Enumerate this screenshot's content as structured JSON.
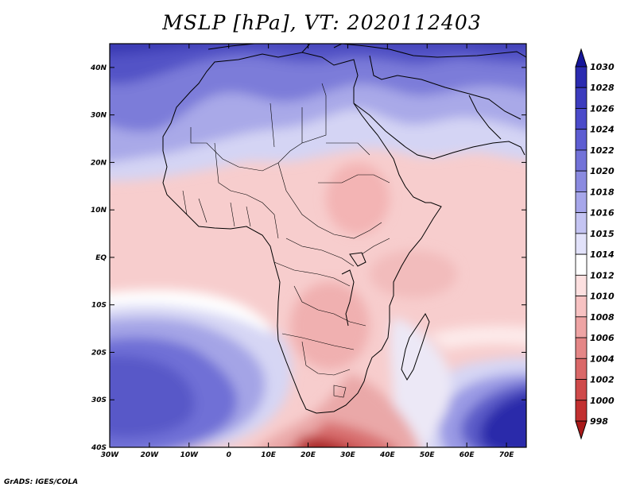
{
  "title": "MSLP [hPa], VT: 2020112403",
  "credit": "GrADS: IGES/COLA",
  "map": {
    "variable": "MSLP",
    "units": "hPa",
    "lat_range": [
      -40,
      45
    ],
    "lon_range": [
      -30,
      75
    ],
    "lat_labels": [
      {
        "lat": 40,
        "text": "40N"
      },
      {
        "lat": 30,
        "text": "30N"
      },
      {
        "lat": 20,
        "text": "20N"
      },
      {
        "lat": 10,
        "text": "10N"
      },
      {
        "lat": 0,
        "text": "EQ"
      },
      {
        "lat": -10,
        "text": "10S"
      },
      {
        "lat": -20,
        "text": "20S"
      },
      {
        "lat": -30,
        "text": "30S"
      },
      {
        "lat": -40,
        "text": "40S"
      }
    ],
    "lon_labels": [
      {
        "lon": -30,
        "text": "30W"
      },
      {
        "lon": -20,
        "text": "20W"
      },
      {
        "lon": -10,
        "text": "10W"
      },
      {
        "lon": 0,
        "text": "0"
      },
      {
        "lon": 10,
        "text": "10E"
      },
      {
        "lon": 20,
        "text": "20E"
      },
      {
        "lon": 30,
        "text": "30E"
      },
      {
        "lon": 40,
        "text": "40E"
      },
      {
        "lon": 50,
        "text": "50E"
      },
      {
        "lon": 60,
        "text": "60E"
      },
      {
        "lon": 70,
        "text": "70E"
      }
    ]
  },
  "colorbar": {
    "labels": [
      "1030",
      "1028",
      "1026",
      "1024",
      "1022",
      "1020",
      "1018",
      "1016",
      "1015",
      "1014",
      "1012",
      "1010",
      "1008",
      "1006",
      "1004",
      "1002",
      "1000",
      "998"
    ],
    "colors": [
      "#16169a",
      "#2b2bb0",
      "#3c3cbe",
      "#4b4bca",
      "#5d5dd2",
      "#7272d8",
      "#8a8ae0",
      "#a6a6ea",
      "#c4c4f2",
      "#e2e2fa",
      "#ffffff",
      "#fde0e0",
      "#f7c2c2",
      "#eea4a4",
      "#e48686",
      "#da6868",
      "#cf4a4a",
      "#c23030",
      "#aa1a1a"
    ]
  }
}
